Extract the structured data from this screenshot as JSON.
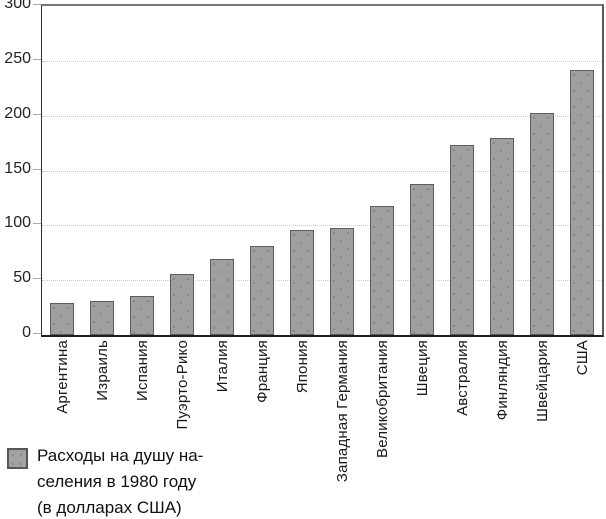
{
  "chart_data": {
    "type": "bar",
    "title": "",
    "xlabel": "",
    "ylabel": "",
    "categories": [
      "Аргентина",
      "Израиль",
      "Испания",
      "Пуэрто-Рико",
      "Италия",
      "Франция",
      "Япония",
      "Западная Германия",
      "Великобритания",
      "Швеция",
      "Австралия",
      "Финляндия",
      "Швейцария",
      "США"
    ],
    "values": [
      29,
      31,
      36,
      56,
      69,
      81,
      96,
      98,
      118,
      138,
      173,
      180,
      202,
      242
    ],
    "ylim": [
      0,
      300
    ],
    "yticks": [
      0,
      50,
      100,
      150,
      200,
      250,
      300
    ],
    "grid": "horizontal-dotted",
    "legend_position": "bottom-left",
    "legend_label": "Расходы на душу населения в 1980 году (в долларах США)"
  },
  "legend": {
    "line1": "Расходы на душу на-",
    "line2": "селения в 1980 году",
    "line3": "(в долларах США)"
  },
  "colors": {
    "background": "#ffffff",
    "bar_fill": "#9f9f9f",
    "bar_border": "#5d5d5d",
    "grid": "#c9c9c9",
    "axis": "#1f1f1f",
    "frame": "#787878",
    "text": "#1a1a1a"
  }
}
